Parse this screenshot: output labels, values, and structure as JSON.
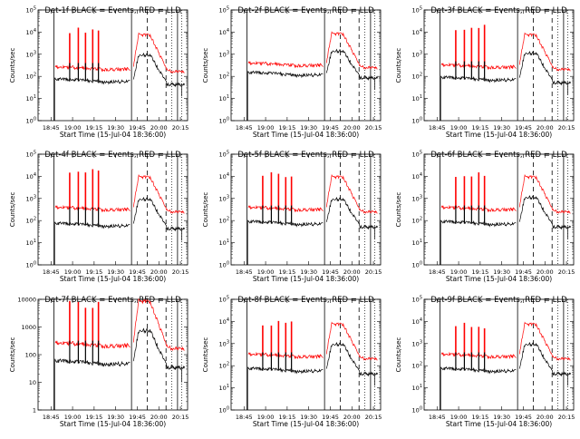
{
  "chart_data": {
    "type": "line",
    "layout": "3x3 grid of detector panels",
    "y_scale": "log",
    "ylabel": "Counts/sec",
    "xlabel": "Start Time (15-Jul-04 18:36:00)",
    "x_ticks": [
      "18:45",
      "19:00",
      "19:15",
      "19:30",
      "19:45",
      "20:00",
      "20:15"
    ],
    "x_range_minutes_after_start": [
      0,
      104
    ],
    "markers": {
      "solid_minutes": [
        11,
        65,
        97
      ],
      "dashed_minutes": [
        76,
        89
      ],
      "dotted_minutes": [
        93,
        100
      ]
    },
    "series_colors": {
      "events": "#000000",
      "lld": "#ff0000"
    },
    "panels": [
      {
        "title": "Det-1f BLACK = Events, RED = LLD",
        "y_ticks": [
          "10^0",
          "10^1",
          "10^2",
          "10^3",
          "10^4",
          "10^5"
        ],
        "ylim": [
          1,
          100000
        ],
        "peak_events": 1000,
        "peak_lld": 8000,
        "base_events": 50,
        "base_lld": 200,
        "spike_top": 15000
      },
      {
        "title": "Det-2f BLACK = Events, RED = LLD",
        "y_ticks": [
          "10^0",
          "10^1",
          "10^2",
          "10^3",
          "10^4",
          "10^5"
        ],
        "ylim": [
          1,
          100000
        ],
        "peak_events": 1500,
        "peak_lld": 9000,
        "base_events": 100,
        "base_lld": 300,
        "spike_top": 0
      },
      {
        "title": "Det-3f BLACK = Events, RED = LLD",
        "y_ticks": [
          "10^0",
          "10^1",
          "10^2",
          "10^3",
          "10^4",
          "10^5"
        ],
        "ylim": [
          1,
          100000
        ],
        "peak_events": 1200,
        "peak_lld": 8000,
        "base_events": 60,
        "base_lld": 250,
        "spike_top": 20000
      },
      {
        "title": "Det-4f BLACK = Events, RED = LLD",
        "y_ticks": [
          "10^0",
          "10^1",
          "10^2",
          "10^3",
          "10^4",
          "10^5"
        ],
        "ylim": [
          1,
          100000
        ],
        "peak_events": 1000,
        "peak_lld": 10000,
        "base_events": 50,
        "base_lld": 300,
        "spike_top": 20000
      },
      {
        "title": "Det-5f BLACK = Events, RED = LLD",
        "y_ticks": [
          "10^0",
          "10^1",
          "10^2",
          "10^3",
          "10^4",
          "10^5"
        ],
        "ylim": [
          1,
          100000
        ],
        "peak_events": 1000,
        "peak_lld": 10000,
        "base_events": 60,
        "base_lld": 300,
        "spike_top": 15000
      },
      {
        "title": "Det-6f BLACK = Events, RED = LLD",
        "y_ticks": [
          "10^0",
          "10^1",
          "10^2",
          "10^3",
          "10^4",
          "10^5"
        ],
        "ylim": [
          1,
          100000
        ],
        "peak_events": 1200,
        "peak_lld": 10000,
        "base_events": 60,
        "base_lld": 300,
        "spike_top": 15000
      },
      {
        "title": "Det-7f BLACK = Events, RED = LLD",
        "y_ticks": [
          "1",
          "10",
          "100",
          "1000",
          "10000"
        ],
        "ylim": [
          1,
          10000
        ],
        "peak_events": 800,
        "peak_lld": 9000,
        "base_events": 40,
        "base_lld": 200,
        "spike_top": 8000
      },
      {
        "title": "Det-8f BLACK = Events, RED = LLD",
        "y_ticks": [
          "10^0",
          "10^1",
          "10^2",
          "10^3",
          "10^4",
          "10^5"
        ],
        "ylim": [
          1,
          100000
        ],
        "peak_events": 1000,
        "peak_lld": 8000,
        "base_events": 50,
        "base_lld": 250,
        "spike_top": 10000
      },
      {
        "title": "Det-9f BLACK = Events, RED = LLD",
        "y_ticks": [
          "10^0",
          "10^1",
          "10^2",
          "10^3",
          "10^4",
          "10^5"
        ],
        "ylim": [
          1,
          100000
        ],
        "peak_events": 1000,
        "peak_lld": 8000,
        "base_events": 50,
        "base_lld": 250,
        "spike_top": 8000
      }
    ]
  }
}
